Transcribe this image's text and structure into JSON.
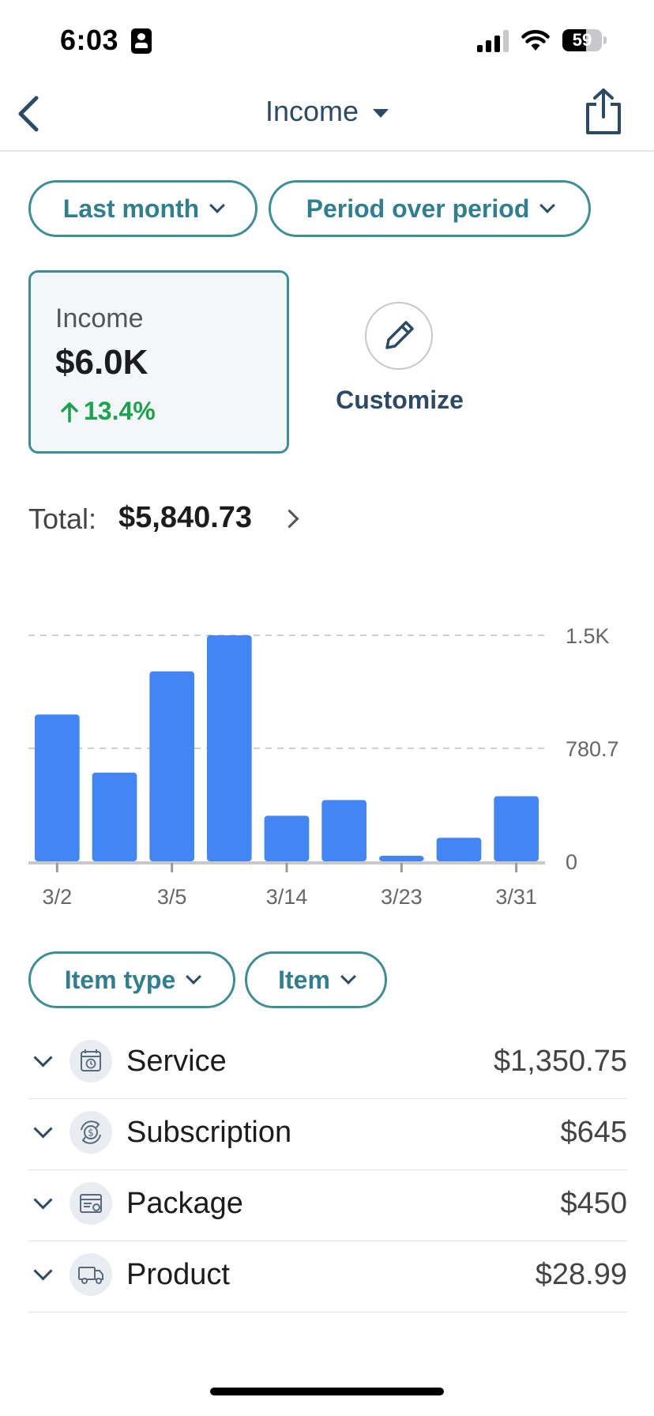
{
  "status_bar": {
    "time": "6:03",
    "battery": "59",
    "battery_level": 59
  },
  "nav": {
    "title": "Income"
  },
  "filters": {
    "period": "Last month",
    "comparison": "Period over period"
  },
  "metric_card": {
    "label": "Income",
    "value": "$6.0K",
    "change": "13.4%",
    "change_direction": "up"
  },
  "customize": {
    "label": "Customize"
  },
  "total": {
    "label": "Total:",
    "value": "$5,840.73"
  },
  "colors": {
    "accent": "#3e8e99",
    "bar": "#4285f4",
    "positive": "#1aa34a",
    "nav_text": "#2c4a66"
  },
  "chart_data": {
    "type": "bar",
    "categories": [
      "3/2",
      "",
      "3/5",
      "",
      "3/14",
      "",
      "3/23",
      "",
      "3/31"
    ],
    "values": [
      935,
      565,
      1210,
      1440,
      290,
      390,
      35,
      150,
      415
    ],
    "x_tick_labels": [
      "3/2",
      "3/5",
      "3/14",
      "3/23",
      "3/31"
    ],
    "y_tick_labels": [
      "1.5K",
      "780.7",
      "0"
    ],
    "ylim": [
      0,
      1440
    ],
    "grid": true,
    "y_axis_side": "right"
  },
  "breakdown_filters": {
    "group": "Item type",
    "item": "Item"
  },
  "breakdown": [
    {
      "icon": "calendar-clock-icon",
      "name": "Service",
      "amount": "$1,350.75"
    },
    {
      "icon": "recurring-dollar-icon",
      "name": "Subscription",
      "amount": "$645"
    },
    {
      "icon": "package-gear-icon",
      "name": "Package",
      "amount": "$450"
    },
    {
      "icon": "delivery-truck-icon",
      "name": "Product",
      "amount": "$28.99"
    }
  ]
}
